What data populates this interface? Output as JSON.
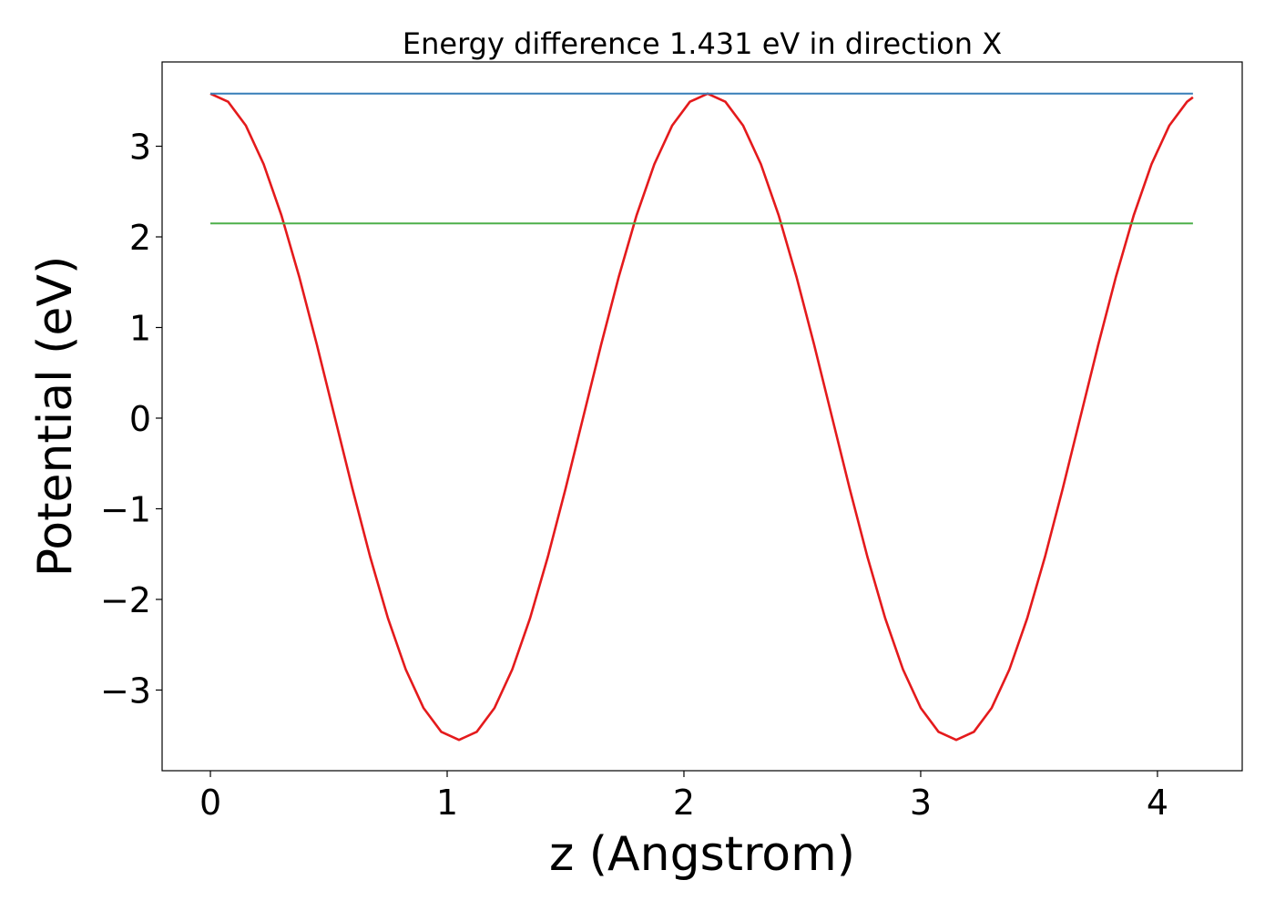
{
  "chart_data": {
    "type": "line",
    "title": "Energy difference 1.431 eV in direction X",
    "xlabel": "z (Angstrom)",
    "ylabel": "Potential (eV)",
    "xlim": [
      -0.204,
      4.358
    ],
    "ylim": [
      -3.89,
      3.93
    ],
    "xticks": [
      0,
      1,
      2,
      3,
      4
    ],
    "xtick_labels": [
      "0",
      "1",
      "2",
      "3",
      "4"
    ],
    "yticks": [
      -3,
      -2,
      -1,
      0,
      1,
      2,
      3
    ],
    "ytick_labels": [
      "−3",
      "−2",
      "−1",
      "0",
      "1",
      "2",
      "3"
    ],
    "grid": false,
    "legend": "none",
    "series": [
      {
        "color": "#e41a1c",
        "x": [
          0,
          0.075,
          0.15,
          0.225,
          0.3,
          0.375,
          0.45,
          0.525,
          0.6,
          0.675,
          0.75,
          0.825,
          0.9,
          0.975,
          1.05,
          1.125,
          1.2,
          1.275,
          1.35,
          1.425,
          1.5,
          1.575,
          1.65,
          1.725,
          1.8,
          1.875,
          1.95,
          2.025,
          2.1,
          2.175,
          2.25,
          2.325,
          2.4,
          2.475,
          2.55,
          2.625,
          2.7,
          2.775,
          2.85,
          2.925,
          3.0,
          3.075,
          3.15,
          3.225,
          3.3,
          3.375,
          3.45,
          3.525,
          3.6,
          3.675,
          3.75,
          3.825,
          3.9,
          3.975,
          4.05,
          4.125,
          4.15
        ],
        "y": [
          3.58,
          3.491,
          3.227,
          2.802,
          2.238,
          1.562,
          0.808,
          0.015,
          -0.778,
          -1.532,
          -2.208,
          -2.772,
          -3.197,
          -3.461,
          -3.55,
          -3.461,
          -3.197,
          -2.772,
          -2.208,
          -1.532,
          -0.778,
          0.015,
          0.808,
          1.562,
          2.238,
          2.802,
          3.227,
          3.491,
          3.58,
          3.491,
          3.227,
          2.802,
          2.238,
          1.562,
          0.808,
          0.015,
          -0.778,
          -1.532,
          -2.208,
          -2.772,
          -3.197,
          -3.461,
          -3.55,
          -3.461,
          -3.197,
          -2.772,
          -2.208,
          -1.532,
          -0.778,
          0.015,
          0.808,
          1.562,
          2.238,
          2.802,
          3.227,
          3.491,
          3.54
        ]
      },
      {
        "color": "#377eb8",
        "x": [
          0,
          4.15
        ],
        "y": [
          3.58,
          3.58
        ]
      },
      {
        "color": "#4daf4a",
        "x": [
          0,
          4.15
        ],
        "y": [
          2.149,
          2.149
        ]
      }
    ]
  }
}
